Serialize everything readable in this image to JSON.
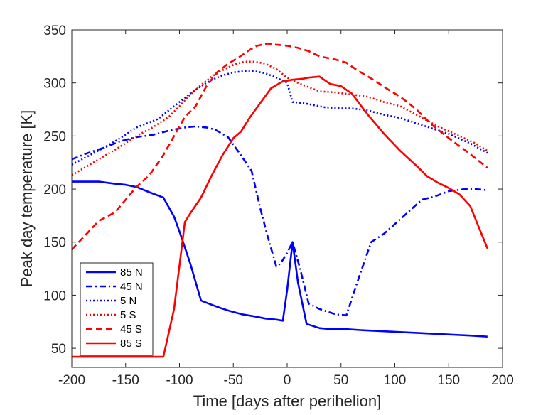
{
  "chart_data": {
    "type": "line",
    "title": "",
    "xlabel": "Time [days after perihelion]",
    "ylabel": "Peak day temperature [K]",
    "xlim": [
      -200,
      200
    ],
    "ylim": [
      32,
      350
    ],
    "xticks": [
      -200,
      -150,
      -100,
      -50,
      0,
      50,
      100,
      150,
      200
    ],
    "yticks": [
      50,
      100,
      150,
      200,
      250,
      300,
      350
    ],
    "grid": false,
    "legend_position": "bottom-left",
    "series": [
      {
        "name": "85 N",
        "color": "#0000ff",
        "dash": "solid",
        "x": [
          -200,
          -175,
          -160,
          -150,
          -140,
          -128,
          -115,
          -105,
          -100,
          -95,
          -90,
          -80,
          -70,
          -62,
          -53,
          -42,
          -30,
          -20,
          -10,
          -4,
          0,
          5,
          10,
          18,
          30,
          40,
          55,
          70,
          90,
          110,
          130,
          150,
          170,
          186
        ],
        "y": [
          207,
          207,
          205,
          204,
          202,
          197,
          192,
          174,
          160,
          145,
          130,
          95,
          91,
          88,
          85,
          82,
          80,
          78,
          77,
          76,
          105,
          150,
          112,
          73,
          69,
          68,
          68,
          67,
          66,
          65,
          64,
          63,
          62,
          61
        ]
      },
      {
        "name": "45 N",
        "color": "#0000ff",
        "dash": "dashdot",
        "x": [
          -200,
          -185,
          -170,
          -155,
          -140,
          -125,
          -110,
          -95,
          -85,
          -75,
          -67,
          -55,
          -43,
          -33,
          -25,
          -18,
          -10,
          -6,
          0,
          5,
          12,
          20,
          30,
          45,
          55,
          65,
          78,
          90,
          100,
          112,
          125,
          137,
          150,
          165,
          175,
          186
        ],
        "y": [
          228,
          234,
          239,
          245,
          249,
          251,
          255,
          258,
          259,
          258,
          256,
          249,
          232,
          217,
          182,
          155,
          127,
          130,
          140,
          150,
          125,
          92,
          87,
          82,
          81,
          112,
          150,
          158,
          167,
          178,
          190,
          193,
          198,
          200,
          200,
          199
        ]
      },
      {
        "name": "5 N",
        "color": "#0000ff",
        "dash": "dotted",
        "x": [
          -200,
          -185,
          -170,
          -155,
          -140,
          -130,
          -120,
          -110,
          -100,
          -90,
          -80,
          -70,
          -60,
          -50,
          -40,
          -30,
          -20,
          -10,
          0,
          5,
          15,
          25,
          35,
          50,
          60,
          75,
          90,
          105,
          120,
          135,
          150,
          170,
          186
        ],
        "y": [
          223,
          231,
          239,
          248,
          258,
          262,
          266,
          274,
          282,
          290,
          297,
          303,
          307,
          310,
          311,
          311,
          309,
          305,
          300,
          282,
          281,
          279,
          277,
          276,
          276,
          274,
          270,
          267,
          262,
          257,
          252,
          243,
          234
        ]
      },
      {
        "name": "5 S",
        "color": "#ff0000",
        "dash": "dotted",
        "x": [
          -200,
          -185,
          -170,
          -155,
          -140,
          -125,
          -110,
          -100,
          -90,
          -80,
          -70,
          -60,
          -50,
          -40,
          -30,
          -20,
          -10,
          0,
          10,
          20,
          30,
          45,
          60,
          75,
          90,
          105,
          120,
          140,
          160,
          175,
          186
        ],
        "y": [
          213,
          222,
          231,
          240,
          250,
          258,
          268,
          278,
          289,
          298,
          306,
          312,
          317,
          320,
          320,
          318,
          313,
          305,
          300,
          296,
          292,
          291,
          289,
          287,
          282,
          278,
          270,
          259,
          250,
          243,
          236
        ]
      },
      {
        "name": "45 S",
        "color": "#ff0000",
        "dash": "dashed",
        "x": [
          -200,
          -175,
          -160,
          -150,
          -140,
          -128,
          -115,
          -105,
          -95,
          -85,
          -75,
          -65,
          -55,
          -45,
          -35,
          -28,
          -18,
          -10,
          0,
          10,
          20,
          30,
          45,
          55,
          65,
          80,
          95,
          105,
          120,
          135,
          150,
          170,
          186
        ],
        "y": [
          143,
          170,
          178,
          190,
          202,
          213,
          232,
          250,
          268,
          278,
          297,
          310,
          318,
          324,
          331,
          335,
          337,
          336,
          335,
          333,
          330,
          325,
          322,
          319,
          312,
          303,
          293,
          287,
          275,
          260,
          248,
          233,
          220
        ]
      },
      {
        "name": "85 S",
        "color": "#ff0000",
        "dash": "solid",
        "x": [
          -200,
          -175,
          -160,
          -150,
          -135,
          -125,
          -115,
          -105,
          -100,
          -95,
          -90,
          -80,
          -70,
          -60,
          -50,
          -43,
          -35,
          -25,
          -15,
          -5,
          5,
          15,
          20,
          30,
          40,
          50,
          60,
          75,
          90,
          105,
          120,
          130,
          140,
          150,
          160,
          170,
          186
        ],
        "y": [
          42,
          42,
          42,
          42,
          42,
          42,
          42,
          87,
          128,
          169,
          177,
          192,
          213,
          232,
          248,
          254,
          267,
          281,
          295,
          301,
          303,
          304,
          305,
          306,
          299,
          297,
          290,
          270,
          252,
          236,
          222,
          212,
          206,
          201,
          195,
          184,
          144
        ]
      }
    ]
  }
}
